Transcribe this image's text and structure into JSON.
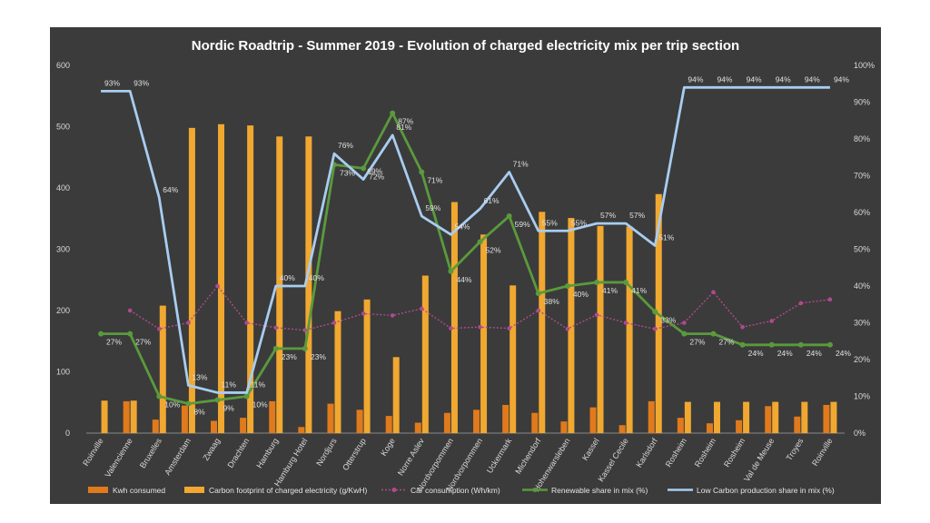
{
  "chart_data": {
    "type": "bar",
    "title": "Nordic Roadtrip  - Summer 2019 - Evolution  of charged electricity  mix per trip section",
    "categories": [
      "Roinville",
      "Valencienne",
      "Bruxelles",
      "Amsterdam",
      "Zwaag",
      "Drachten",
      "Hamburg",
      "Hamburg Hotel",
      "Nordjurs",
      "Otterstrup",
      "Koge",
      "Norre Aslev",
      "Nordvorpommen",
      "Nordvorpommen",
      "Uckermark",
      "Michendorf",
      "Hohenwarsleben",
      "Kassel",
      "Kassel Cecile",
      "Karlsdorf",
      "Rosheim",
      "Rosheim",
      "Rosheim",
      "Val de Meuse",
      "Troyes",
      "Roinville"
    ],
    "y_left": {
      "min": 0,
      "max": 600,
      "ticks": [
        "0",
        "100",
        "200",
        "300",
        "400",
        "500",
        "600"
      ]
    },
    "y_right": {
      "min": 0,
      "max": 100,
      "ticks": [
        "0%",
        "10%",
        "20%",
        "30%",
        "40%",
        "50%",
        "60%",
        "70%",
        "80%",
        "90%",
        "100%"
      ]
    },
    "series": [
      {
        "name": "Kwh consumed",
        "type": "bar",
        "axis": "left",
        "color": "#e07a1c",
        "values": [
          0,
          52,
          22,
          45,
          20,
          25,
          52,
          10,
          48,
          38,
          28,
          17,
          33,
          38,
          46,
          33,
          19,
          42,
          13,
          52,
          25,
          16,
          21,
          44,
          27,
          46
        ]
      },
      {
        "name": "Carbon footprint of charged electricity (g/KwH)",
        "type": "bar",
        "axis": "left",
        "color": "#f0a830",
        "values": [
          53,
          53,
          208,
          498,
          504,
          502,
          484,
          484,
          199,
          218,
          124,
          257,
          377,
          324,
          241,
          361,
          351,
          338,
          337,
          390,
          51,
          51,
          51,
          51,
          51,
          51
        ]
      },
      {
        "name": "Car consumption (Wh/km)",
        "type": "line",
        "axis": "left",
        "color": "#b04a8c",
        "values": [
          null,
          200,
          170,
          180,
          240,
          180,
          172,
          168,
          180,
          195,
          192,
          203,
          171,
          173,
          171,
          200,
          170,
          193,
          180,
          170,
          180,
          230,
          173,
          183,
          212,
          218
        ]
      },
      {
        "name": "Renewable share in mix (%)",
        "type": "line",
        "axis": "right",
        "color": "#5a9a3c",
        "values": [
          27,
          27,
          10,
          8,
          9,
          10,
          23,
          23,
          73,
          72,
          87,
          71,
          44,
          52,
          59,
          38,
          40,
          41,
          41,
          33,
          27,
          27,
          24,
          24,
          24,
          24
        ],
        "labels": [
          "27%",
          "27%",
          "10%",
          "8%",
          "9%",
          "10%",
          "23%",
          "23%",
          "73%",
          "72%",
          "87%",
          "71%",
          "44%",
          "52%",
          "59%",
          "38%",
          "40%",
          "41%",
          "41%",
          "33%",
          "27%",
          "27%",
          "24%",
          "24%",
          "24%",
          "24%"
        ]
      },
      {
        "name": "Low Carbon production share in mix (%)",
        "type": "line",
        "axis": "right",
        "color": "#a8cdf0",
        "values": [
          93,
          93,
          64,
          13,
          11,
          11,
          40,
          40,
          76,
          69,
          81,
          59,
          54,
          61,
          71,
          55,
          55,
          57,
          57,
          51,
          94,
          94,
          94,
          94,
          94,
          94
        ],
        "labels": [
          "93%",
          "93%",
          "64%",
          "13%",
          "11%",
          "11%",
          "40%",
          "40%",
          "76%",
          "69%",
          "81%",
          "59%",
          "54%",
          "61%",
          "71%",
          "55%",
          "55%",
          "57%",
          "57%",
          "51%",
          "94%",
          "94%",
          "94%",
          "94%",
          "94%",
          "94%"
        ]
      }
    ],
    "legend": [
      "Kwh consumed",
      "Carbon footprint of charged electricity (g/KwH)",
      "Car consumption (Wh/km)",
      "Renewable share in mix (%)",
      "Low Carbon production share in mix (%)"
    ],
    "legend_position": "bottom",
    "grid": false
  }
}
